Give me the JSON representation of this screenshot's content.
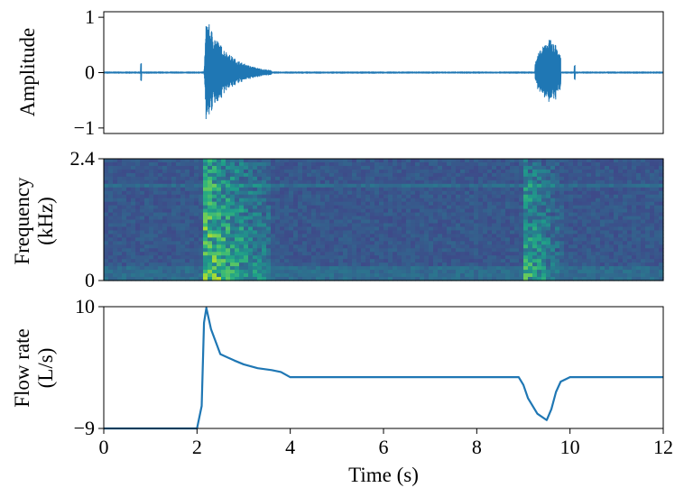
{
  "chart_data": [
    {
      "type": "line",
      "panel": "waveform",
      "ylabel": "Amplitude",
      "xlim": [
        0,
        12
      ],
      "ylim": [
        -1.1,
        1.1
      ],
      "yticks": [
        -1,
        0,
        1
      ],
      "ytick_labels": [
        "−1",
        "0",
        "1"
      ],
      "color": "#1f77b4",
      "noise_floor": 0.02,
      "events": [
        {
          "t": 0.8,
          "amplitude": 0.25,
          "kind": "spike"
        },
        {
          "t": 2.2,
          "amplitude": 1.0,
          "decay_s": 0.45,
          "end": 3.6,
          "kind": "burst"
        },
        {
          "t": 9.3,
          "amplitude": 0.6,
          "end": 9.8,
          "kind": "burst"
        },
        {
          "t": 10.1,
          "amplitude": 0.18,
          "kind": "spike"
        }
      ]
    },
    {
      "type": "heatmap",
      "panel": "spectrogram",
      "ylabel_lines": [
        "Frequency",
        "(kHz)"
      ],
      "xlim": [
        0,
        12
      ],
      "ylim": [
        0,
        2.4
      ],
      "yticks": [
        0,
        2.4
      ],
      "ytick_labels": [
        "0",
        "2.4"
      ],
      "colormap": "viridis",
      "bright_regions": [
        {
          "t_start": 2.15,
          "t_end": 3.6,
          "intensity": 0.85
        },
        {
          "t_start": 9.0,
          "t_end": 9.9,
          "intensity": 0.7
        }
      ],
      "tonal_line_khz": 1.9
    },
    {
      "type": "line",
      "panel": "flow",
      "ylabel_lines": [
        "Flow rate",
        "(L/s)"
      ],
      "xlabel": "Time (s)",
      "xlim": [
        0,
        12
      ],
      "ylim": [
        -9,
        10
      ],
      "yticks": [
        -9,
        10
      ],
      "ytick_labels": [
        "−9",
        "10"
      ],
      "xticks": [
        0,
        2,
        4,
        6,
        8,
        10,
        12
      ],
      "xtick_labels": [
        "0",
        "2",
        "4",
        "6",
        "8",
        "10",
        "12"
      ],
      "color": "#1f77b4",
      "x": [
        0,
        2.0,
        2.1,
        2.15,
        2.2,
        2.3,
        2.5,
        2.8,
        3.0,
        3.3,
        3.6,
        3.8,
        4.0,
        8.9,
        9.0,
        9.1,
        9.3,
        9.5,
        9.6,
        9.7,
        9.8,
        10.0,
        12
      ],
      "y": [
        -9,
        -9,
        -5.5,
        7.5,
        9.8,
        6.5,
        2.6,
        1.6,
        1.0,
        0.4,
        0.1,
        -0.2,
        -1.0,
        -1.0,
        -2.2,
        -4.3,
        -6.7,
        -7.7,
        -6.0,
        -3.3,
        -1.7,
        -1.0,
        -1.0
      ]
    }
  ]
}
